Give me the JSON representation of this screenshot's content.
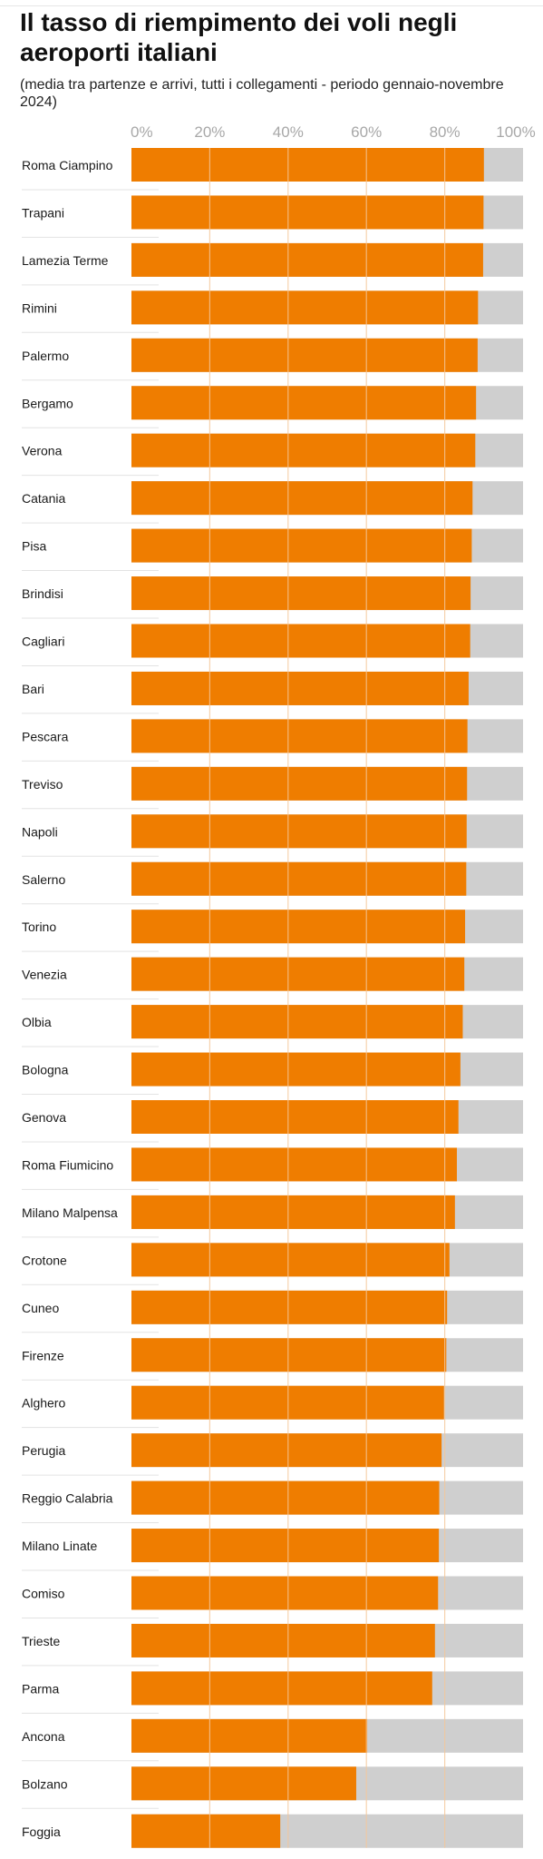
{
  "title": "Il tasso di riempimento dei voli negli aeroporti italiani",
  "subtitle": "(media tra partenze e arrivi, tutti i collegamenti - periodo gennaio-novembre 2024)",
  "colors": {
    "bar": "#ef7d00",
    "remainder": "#cfcfcf",
    "gridline": "#f4c79a",
    "separator": "#e3e3e3",
    "tick_text": "#a8a8a8",
    "label_text": "#1a1a1a"
  },
  "chart_data": {
    "type": "bar",
    "orientation": "horizontal",
    "stacked_to": 100,
    "title": "Il tasso di riempimento dei voli negli aeroporti italiani",
    "subtitle": "(media tra partenze e arrivi, tutti i collegamenti - periodo gennaio-novembre 2024)",
    "xlim": [
      0,
      100
    ],
    "x_ticks": [
      "0%",
      "20%",
      "40%",
      "60%",
      "80%",
      "100%"
    ],
    "x_tick_values": [
      0,
      20,
      40,
      60,
      80,
      100
    ],
    "grid": true,
    "categories": [
      "Roma Ciampino",
      "Trapani",
      "Lamezia Terme",
      "Rimini",
      "Palermo",
      "Bergamo",
      "Verona",
      "Catania",
      "Pisa",
      "Brindisi",
      "Cagliari",
      "Bari",
      "Pescara",
      "Treviso",
      "Napoli",
      "Salerno",
      "Torino",
      "Venezia",
      "Olbia",
      "Bologna",
      "Genova",
      "Roma Fiumicino",
      "Milano Malpensa",
      "Crotone",
      "Cuneo",
      "Firenze",
      "Alghero",
      "Perugia",
      "Reggio Calabria",
      "Milano Linate",
      "Comiso",
      "Trieste",
      "Parma",
      "Ancona",
      "Bolzano",
      "Foggia"
    ],
    "values": [
      90.0,
      89.9,
      89.8,
      88.5,
      88.4,
      88.0,
      87.8,
      87.1,
      86.9,
      86.6,
      86.5,
      86.1,
      85.8,
      85.7,
      85.6,
      85.5,
      85.2,
      85.0,
      84.6,
      84.0,
      83.5,
      83.1,
      82.6,
      81.2,
      80.6,
      80.4,
      79.8,
      79.2,
      78.6,
      78.5,
      78.3,
      77.5,
      76.8,
      60.2,
      57.4,
      38.0
    ]
  }
}
